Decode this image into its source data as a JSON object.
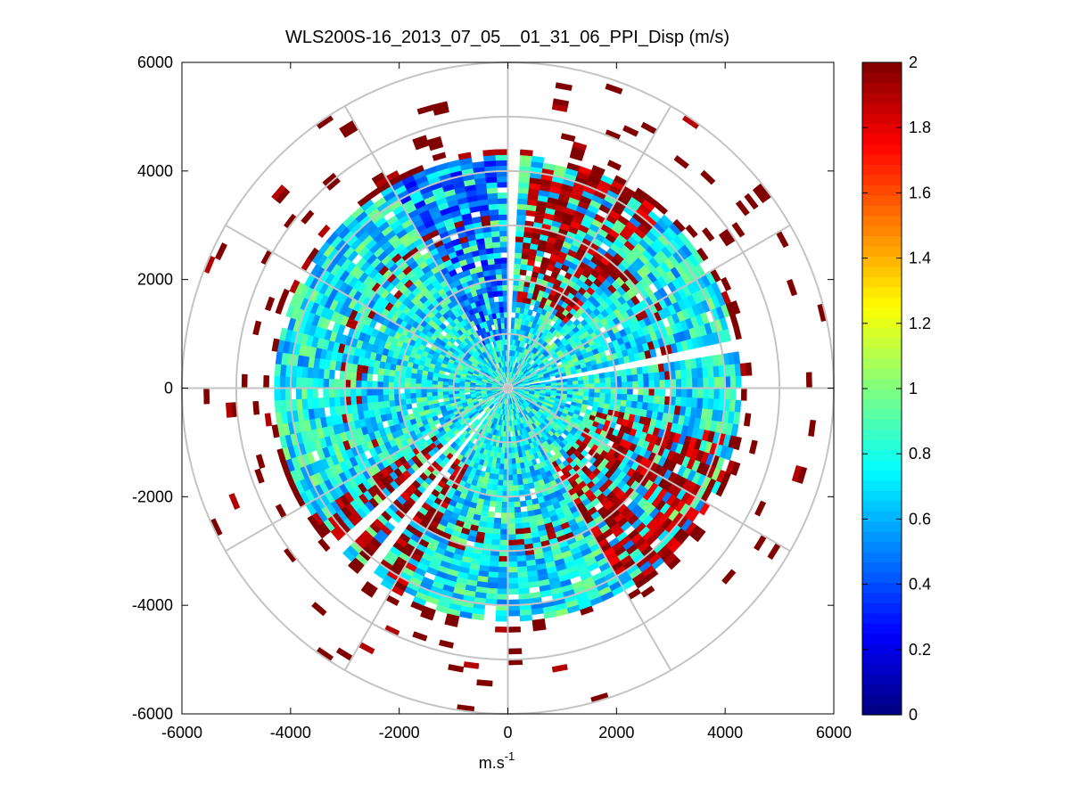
{
  "chart_data": {
    "type": "heatmap",
    "subtype": "polar-ppi",
    "title": "WLS200S-16_2013_07_05__01_31_06_PPI_Disp (m/s)",
    "xlabel": {
      "base": "m.s",
      "exponent": "-1"
    },
    "ylabel": "",
    "xlim": [
      -6000,
      6000
    ],
    "ylim": [
      -6000,
      6000
    ],
    "xticks": [
      -6000,
      -4000,
      -2000,
      0,
      2000,
      4000,
      6000
    ],
    "yticks": [
      6000,
      4000,
      2000,
      0,
      -2000,
      -4000,
      -6000
    ],
    "xtick_labels": [
      "-6000",
      "-4000",
      "-2000",
      "0",
      "2000",
      "4000",
      "6000"
    ],
    "ytick_labels": [
      "6000",
      "4000",
      "2000",
      "0",
      "-2000",
      "-4000",
      "-6000"
    ],
    "range_rings_m": [
      1000,
      2000,
      3000,
      4000,
      5000,
      6000
    ],
    "radial_spokes_deg": [
      0,
      30,
      60,
      90,
      120,
      150,
      180,
      210,
      240,
      270,
      300,
      330
    ],
    "grid": true,
    "colorbar": {
      "range": [
        0,
        2
      ],
      "colormap": "jet",
      "ticks": [
        0,
        0.2,
        0.4,
        0.6,
        0.8,
        1,
        1.2,
        1.4,
        1.6,
        1.8,
        2
      ],
      "tick_labels": [
        "0",
        "0.2",
        "0.4",
        "0.6",
        "0.8",
        "1",
        "1.2",
        "1.4",
        "1.6",
        "1.8",
        "2"
      ],
      "location": "right"
    },
    "field": {
      "typical_value": 0.75,
      "data_extent_m": 4300,
      "high_dispersion_sectors": [
        {
          "from_deg": 5,
          "to_deg": 40,
          "value": 1.9
        },
        {
          "from_deg": 100,
          "to_deg": 150,
          "value": 1.9
        },
        {
          "from_deg": 205,
          "to_deg": 235,
          "value": 1.95
        }
      ],
      "low_dispersion_sector": {
        "from_deg": 330,
        "to_deg": 360,
        "value": 0.25
      },
      "gaps_deg": [
        [
          0,
          3
        ],
        [
          76,
          81
        ],
        [
          215,
          218
        ],
        [
          223,
          227
        ]
      ],
      "sparse_outer_ring_m": [
        4400,
        6000
      ],
      "outer_value": 2.0
    }
  }
}
